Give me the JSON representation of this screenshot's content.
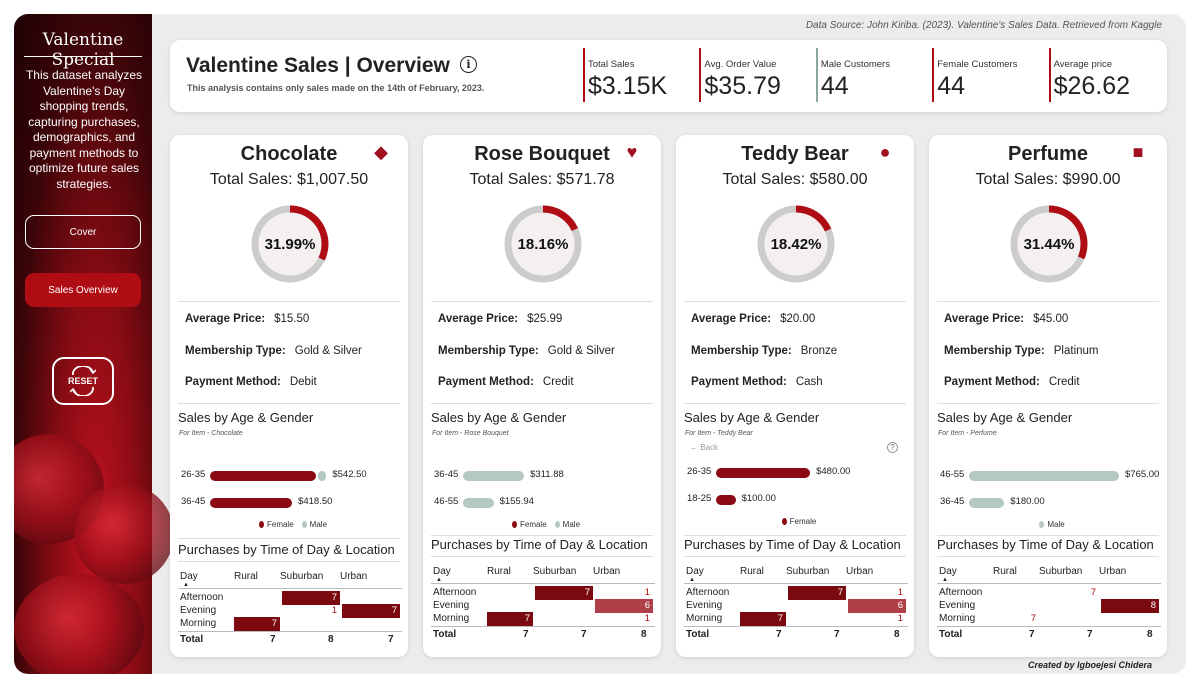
{
  "source": "Data Source: John Kiriba. (2023). Valentine's Sales Data. Retrieved from Kaggle",
  "credit": "Created by Igboejesi Chidera",
  "sidebar": {
    "title": "Valentine Special",
    "description": "This dataset analyzes Valentine's Day shopping trends, capturing purchases, demographics, and payment methods to optimize future sales strategies.",
    "buttons": {
      "cover": "Cover",
      "sales_overview": "Sales Overview",
      "reset": "RESET"
    }
  },
  "header": {
    "title": "Valentine Sales | Overview",
    "info_symbol": "i",
    "subtitle": "This analysis contains only sales made on the 14th of February, 2023.",
    "kpis": [
      {
        "label": "Total Sales",
        "value": "$3.15K"
      },
      {
        "label": "Avg. Order Value",
        "value": "$35.79"
      },
      {
        "label": "Male Customers",
        "value": "44"
      },
      {
        "label": "Female Customers",
        "value": "44"
      },
      {
        "label": "Average price",
        "value": "$26.62"
      }
    ]
  },
  "labels": {
    "total_sales": "Total Sales:",
    "average_price": "Average Price:",
    "membership_type": "Membership Type:",
    "payment_method": "Payment Method:",
    "sales_by_age_gender": "Sales by Age & Gender",
    "purchases_by_time": "Purchases by Time of Day & Location",
    "female": "Female",
    "male": "Male",
    "back": "Back",
    "help_symbol": "?",
    "day": "Day",
    "rural": "Rural",
    "suburban": "Suburban",
    "urban": "Urban",
    "afternoon": "Afternoon",
    "evening": "Evening",
    "morning": "Morning",
    "total": "Total"
  },
  "colors": {
    "accent": "#b00c14",
    "female": "#8b0a14",
    "male": "#b6c8c2",
    "ring_bg": "#cccccc",
    "cell_dark": "#7a0a10",
    "cell_mid": "#b04048"
  },
  "cards": [
    {
      "name": "Chocolate",
      "icon": "chocolate-box-icon",
      "total_sales": "$1,007.50",
      "share": 31.99,
      "share_label": "31.99%",
      "average_price": "$15.50",
      "membership": "Gold & Silver",
      "payment": "Debit",
      "filter_note": "For Item - Chocolate",
      "age_bars": [
        {
          "age": "26-35",
          "female": 542.5,
          "male": 0,
          "label": "$542.50"
        },
        {
          "age": "36-45",
          "female": 418.5,
          "male": 0,
          "label": "$418.50"
        }
      ],
      "legend": [
        "female",
        "male"
      ],
      "matrix": {
        "afternoon": {
          "rural": "",
          "suburban": "7",
          "urban": ""
        },
        "evening": {
          "rural": "",
          "suburban": "1",
          "urban": "7"
        },
        "morning": {
          "rural": "7",
          "suburban": "",
          "urban": ""
        },
        "total": {
          "rural": "7",
          "suburban": "8",
          "urban": "7"
        }
      }
    },
    {
      "name": "Rose Bouquet",
      "icon": "rose-heart-icon",
      "total_sales": "$571.78",
      "share": 18.16,
      "share_label": "18.16%",
      "average_price": "$25.99",
      "membership": "Gold & Silver",
      "payment": "Credit",
      "filter_note": "For Item - Rose Bouquet",
      "age_bars": [
        {
          "age": "36-45",
          "female": 0,
          "male": 311.88,
          "label": "$311.88"
        },
        {
          "age": "46-55",
          "female": 0,
          "male": 155.94,
          "label": "$155.94"
        }
      ],
      "legend": [
        "female",
        "male"
      ],
      "matrix": {
        "afternoon": {
          "rural": "",
          "suburban": "7",
          "urban": "1"
        },
        "evening": {
          "rural": "",
          "suburban": "",
          "urban": "6"
        },
        "morning": {
          "rural": "7",
          "suburban": "",
          "urban": "1"
        },
        "total": {
          "rural": "7",
          "suburban": "7",
          "urban": "8"
        }
      }
    },
    {
      "name": "Teddy Bear",
      "icon": "teddy-bear-icon",
      "total_sales": "$580.00",
      "share": 18.42,
      "share_label": "18.42%",
      "average_price": "$20.00",
      "membership": "Bronze",
      "payment": "Cash",
      "filter_note": "For Item - Teddy Bear",
      "age_bars": [
        {
          "age": "26-35",
          "female": 480.0,
          "male": 0,
          "label": "$480.00"
        },
        {
          "age": "18-25",
          "female": 100.0,
          "male": 0,
          "label": "$100.00"
        }
      ],
      "legend": [
        "female"
      ],
      "matrix": {
        "afternoon": {
          "rural": "",
          "suburban": "7",
          "urban": "1"
        },
        "evening": {
          "rural": "",
          "suburban": "",
          "urban": "6"
        },
        "morning": {
          "rural": "7",
          "suburban": "",
          "urban": "1"
        },
        "total": {
          "rural": "7",
          "suburban": "7",
          "urban": "8"
        }
      }
    },
    {
      "name": "Perfume",
      "icon": "perfume-bottle-icon",
      "total_sales": "$990.00",
      "share": 31.44,
      "share_label": "31.44%",
      "average_price": "$45.00",
      "membership": "Platinum",
      "payment": "Credit",
      "filter_note": "For Item - Perfume",
      "age_bars": [
        {
          "age": "46-55",
          "female": 0,
          "male": 765.0,
          "label": "$765.00"
        },
        {
          "age": "36-45",
          "female": 0,
          "male": 180.0,
          "label": "$180.00"
        }
      ],
      "legend": [
        "male"
      ],
      "matrix": {
        "afternoon": {
          "rural": "",
          "suburban": "7",
          "urban": ""
        },
        "evening": {
          "rural": "",
          "suburban": "",
          "urban": "8"
        },
        "morning": {
          "rural": "7",
          "suburban": "",
          "urban": ""
        },
        "total": {
          "rural": "7",
          "suburban": "7",
          "urban": "8"
        }
      }
    }
  ]
}
